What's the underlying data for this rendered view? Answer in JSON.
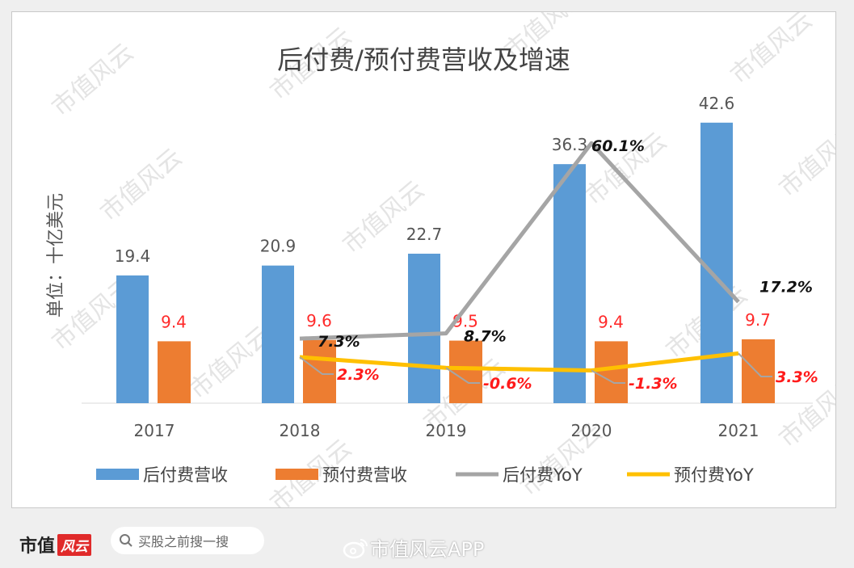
{
  "chart_data": {
    "type": "bar+line",
    "title": "后付费/预付费营收及增速",
    "ylabel": "单位：十亿美元",
    "categories": [
      "2017",
      "2018",
      "2019",
      "2020",
      "2021"
    ],
    "series": [
      {
        "name": "后付费营收",
        "type": "bar",
        "color": "#5b9bd5",
        "values": [
          19.4,
          20.9,
          22.7,
          36.3,
          42.6
        ],
        "labels": [
          "19.4",
          "20.9",
          "22.7",
          "36.3",
          "42.6"
        ]
      },
      {
        "name": "预付费营收",
        "type": "bar",
        "color": "#ed7d31",
        "values": [
          9.4,
          9.6,
          9.5,
          9.4,
          9.7
        ],
        "labels": [
          "9.4",
          "9.6",
          "9.5",
          "9.4",
          "9.7"
        ]
      },
      {
        "name": "后付费YoY",
        "type": "line",
        "axis": "secondary",
        "color": "#a5a5a5",
        "values": [
          null,
          7.3,
          8.7,
          60.1,
          17.2
        ],
        "labels": [
          "",
          "7.3%",
          "8.7%",
          "60.1%",
          "17.2%"
        ]
      },
      {
        "name": "预付费YoY",
        "type": "line",
        "axis": "secondary",
        "color": "#ffc000",
        "values": [
          null,
          2.3,
          -0.6,
          -1.3,
          3.3
        ],
        "labels": [
          "",
          "2.3%",
          "-0.6%",
          "-1.3%",
          "3.3%"
        ]
      }
    ],
    "ylim": [
      0,
      42.6
    ],
    "legend": "bottom",
    "grid": false
  },
  "footer": {
    "logo_text": "市值",
    "logo_red_text": "风云",
    "search_placeholder": "买股之前搜一搜",
    "weibo_text": "市值风云APP"
  },
  "watermark": "市值风云"
}
